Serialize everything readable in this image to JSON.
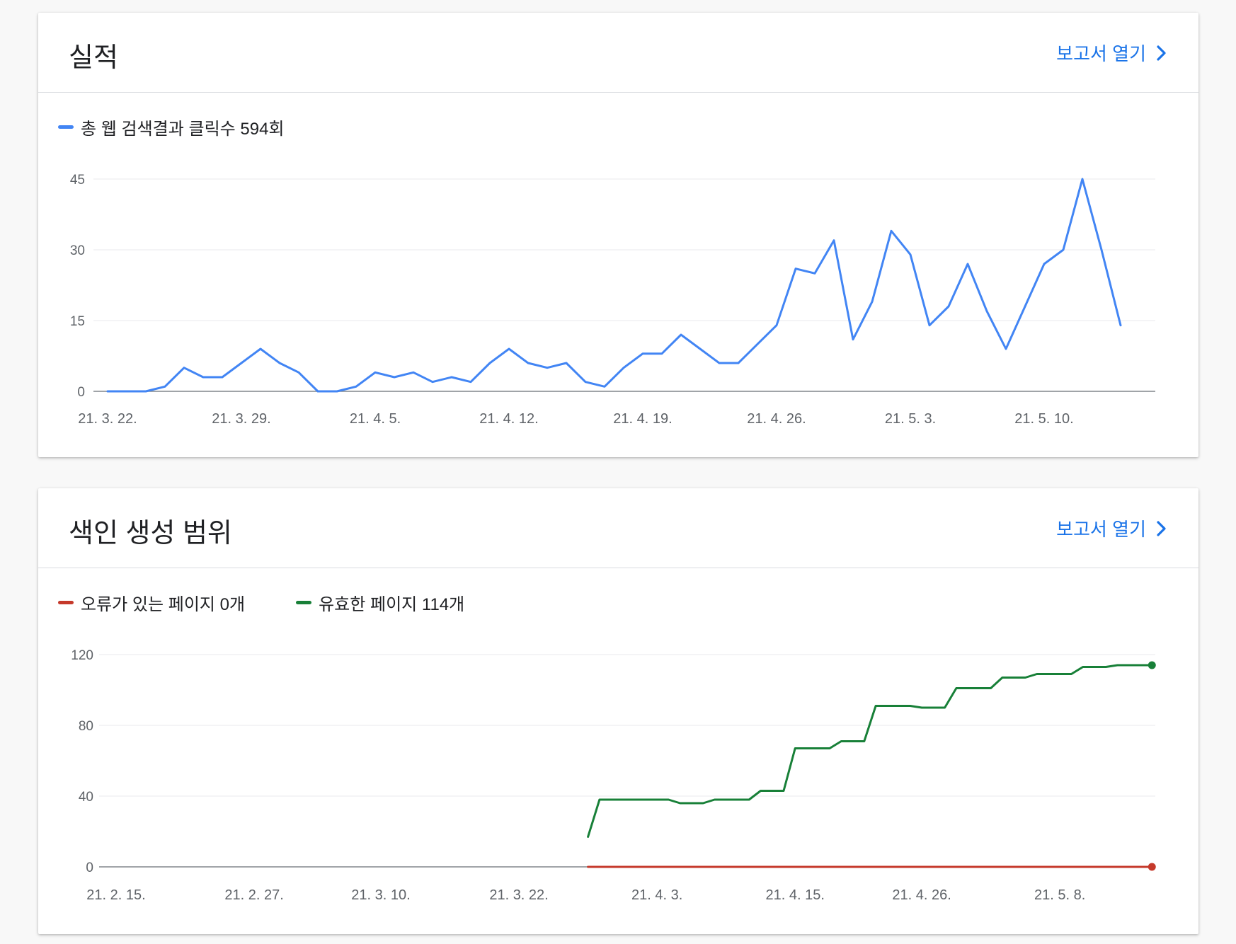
{
  "performance": {
    "title": "실적",
    "report_link": "보고서 열기",
    "legend": {
      "label": "총 웹 검색결과 클릭수 594회",
      "color": "#4285f4"
    },
    "chart_data": {
      "type": "line",
      "title": "",
      "y_ticks": [
        "0",
        "15",
        "30",
        "45"
      ],
      "ylim": [
        0,
        45
      ],
      "x_tick_labels": [
        "21. 3. 22.",
        "21. 3. 29.",
        "21. 4. 5.",
        "21. 4. 12.",
        "21. 4. 19.",
        "21. 4. 26.",
        "21. 5. 3.",
        "21. 5. 10."
      ],
      "x_tick_dates": [
        "2021-03-22",
        "2021-03-29",
        "2021-04-05",
        "2021-04-12",
        "2021-04-19",
        "2021-04-26",
        "2021-05-03",
        "2021-05-10"
      ],
      "x_start": "2021-03-22",
      "x_end": "2021-05-15",
      "grid": true,
      "series": [
        {
          "name": "총 웹 검색결과 클릭수 594회",
          "color": "#4285f4",
          "values": [
            0,
            0,
            0,
            1,
            5,
            3,
            3,
            6,
            9,
            6,
            4,
            0,
            0,
            1,
            4,
            3,
            4,
            2,
            3,
            2,
            6,
            9,
            6,
            5,
            6,
            2,
            1,
            5,
            8,
            8,
            12,
            9,
            6,
            6,
            10,
            14,
            26,
            25,
            32,
            11,
            19,
            34,
            29,
            14,
            18,
            27,
            17,
            9,
            18,
            27,
            30,
            45,
            30,
            14
          ]
        }
      ]
    }
  },
  "coverage": {
    "title": "색인 생성 범위",
    "report_link": "보고서 열기",
    "legend": [
      {
        "label": "오류가 있는 페이지 0개",
        "color": "#c5392b"
      },
      {
        "label": "유효한 페이지 114개",
        "color": "#188038"
      }
    ],
    "chart_data": {
      "type": "line",
      "title": "",
      "y_ticks": [
        "0",
        "40",
        "80",
        "120"
      ],
      "ylim": [
        0,
        120
      ],
      "x_tick_labels": [
        "21. 2. 15.",
        "21. 2. 27.",
        "21. 3. 10.",
        "21. 3. 22.",
        "21. 4. 3.",
        "21. 4. 15.",
        "21. 4. 26.",
        "21. 5. 8."
      ],
      "x_tick_dates": [
        "2021-02-15",
        "2021-02-27",
        "2021-03-10",
        "2021-03-22",
        "2021-04-03",
        "2021-04-15",
        "2021-04-26",
        "2021-05-08"
      ],
      "x_start": "2021-02-15",
      "x_end": "2021-05-15",
      "grid": true,
      "series": [
        {
          "name": "오류가 있는 페이지 0개",
          "color": "#c5392b",
          "start": "2021-03-28",
          "values": [
            0,
            0,
            0,
            0,
            0,
            0,
            0,
            0,
            0,
            0,
            0,
            0,
            0,
            0,
            0,
            0,
            0,
            0,
            0,
            0,
            0,
            0,
            0,
            0,
            0,
            0,
            0,
            0,
            0,
            0,
            0,
            0,
            0,
            0,
            0,
            0,
            0,
            0,
            0,
            0,
            0,
            0,
            0,
            0,
            0,
            0,
            0,
            0,
            0,
            0
          ]
        },
        {
          "name": "유효한 페이지 114개",
          "color": "#188038",
          "start": "2021-03-28",
          "values": [
            17,
            38,
            38,
            38,
            38,
            38,
            38,
            38,
            36,
            36,
            36,
            38,
            38,
            38,
            38,
            43,
            43,
            43,
            67,
            67,
            67,
            67,
            71,
            71,
            71,
            91,
            91,
            91,
            91,
            90,
            90,
            90,
            101,
            101,
            101,
            101,
            107,
            107,
            107,
            109,
            109,
            109,
            109,
            113,
            113,
            113,
            114,
            114,
            114,
            114
          ]
        }
      ]
    }
  }
}
